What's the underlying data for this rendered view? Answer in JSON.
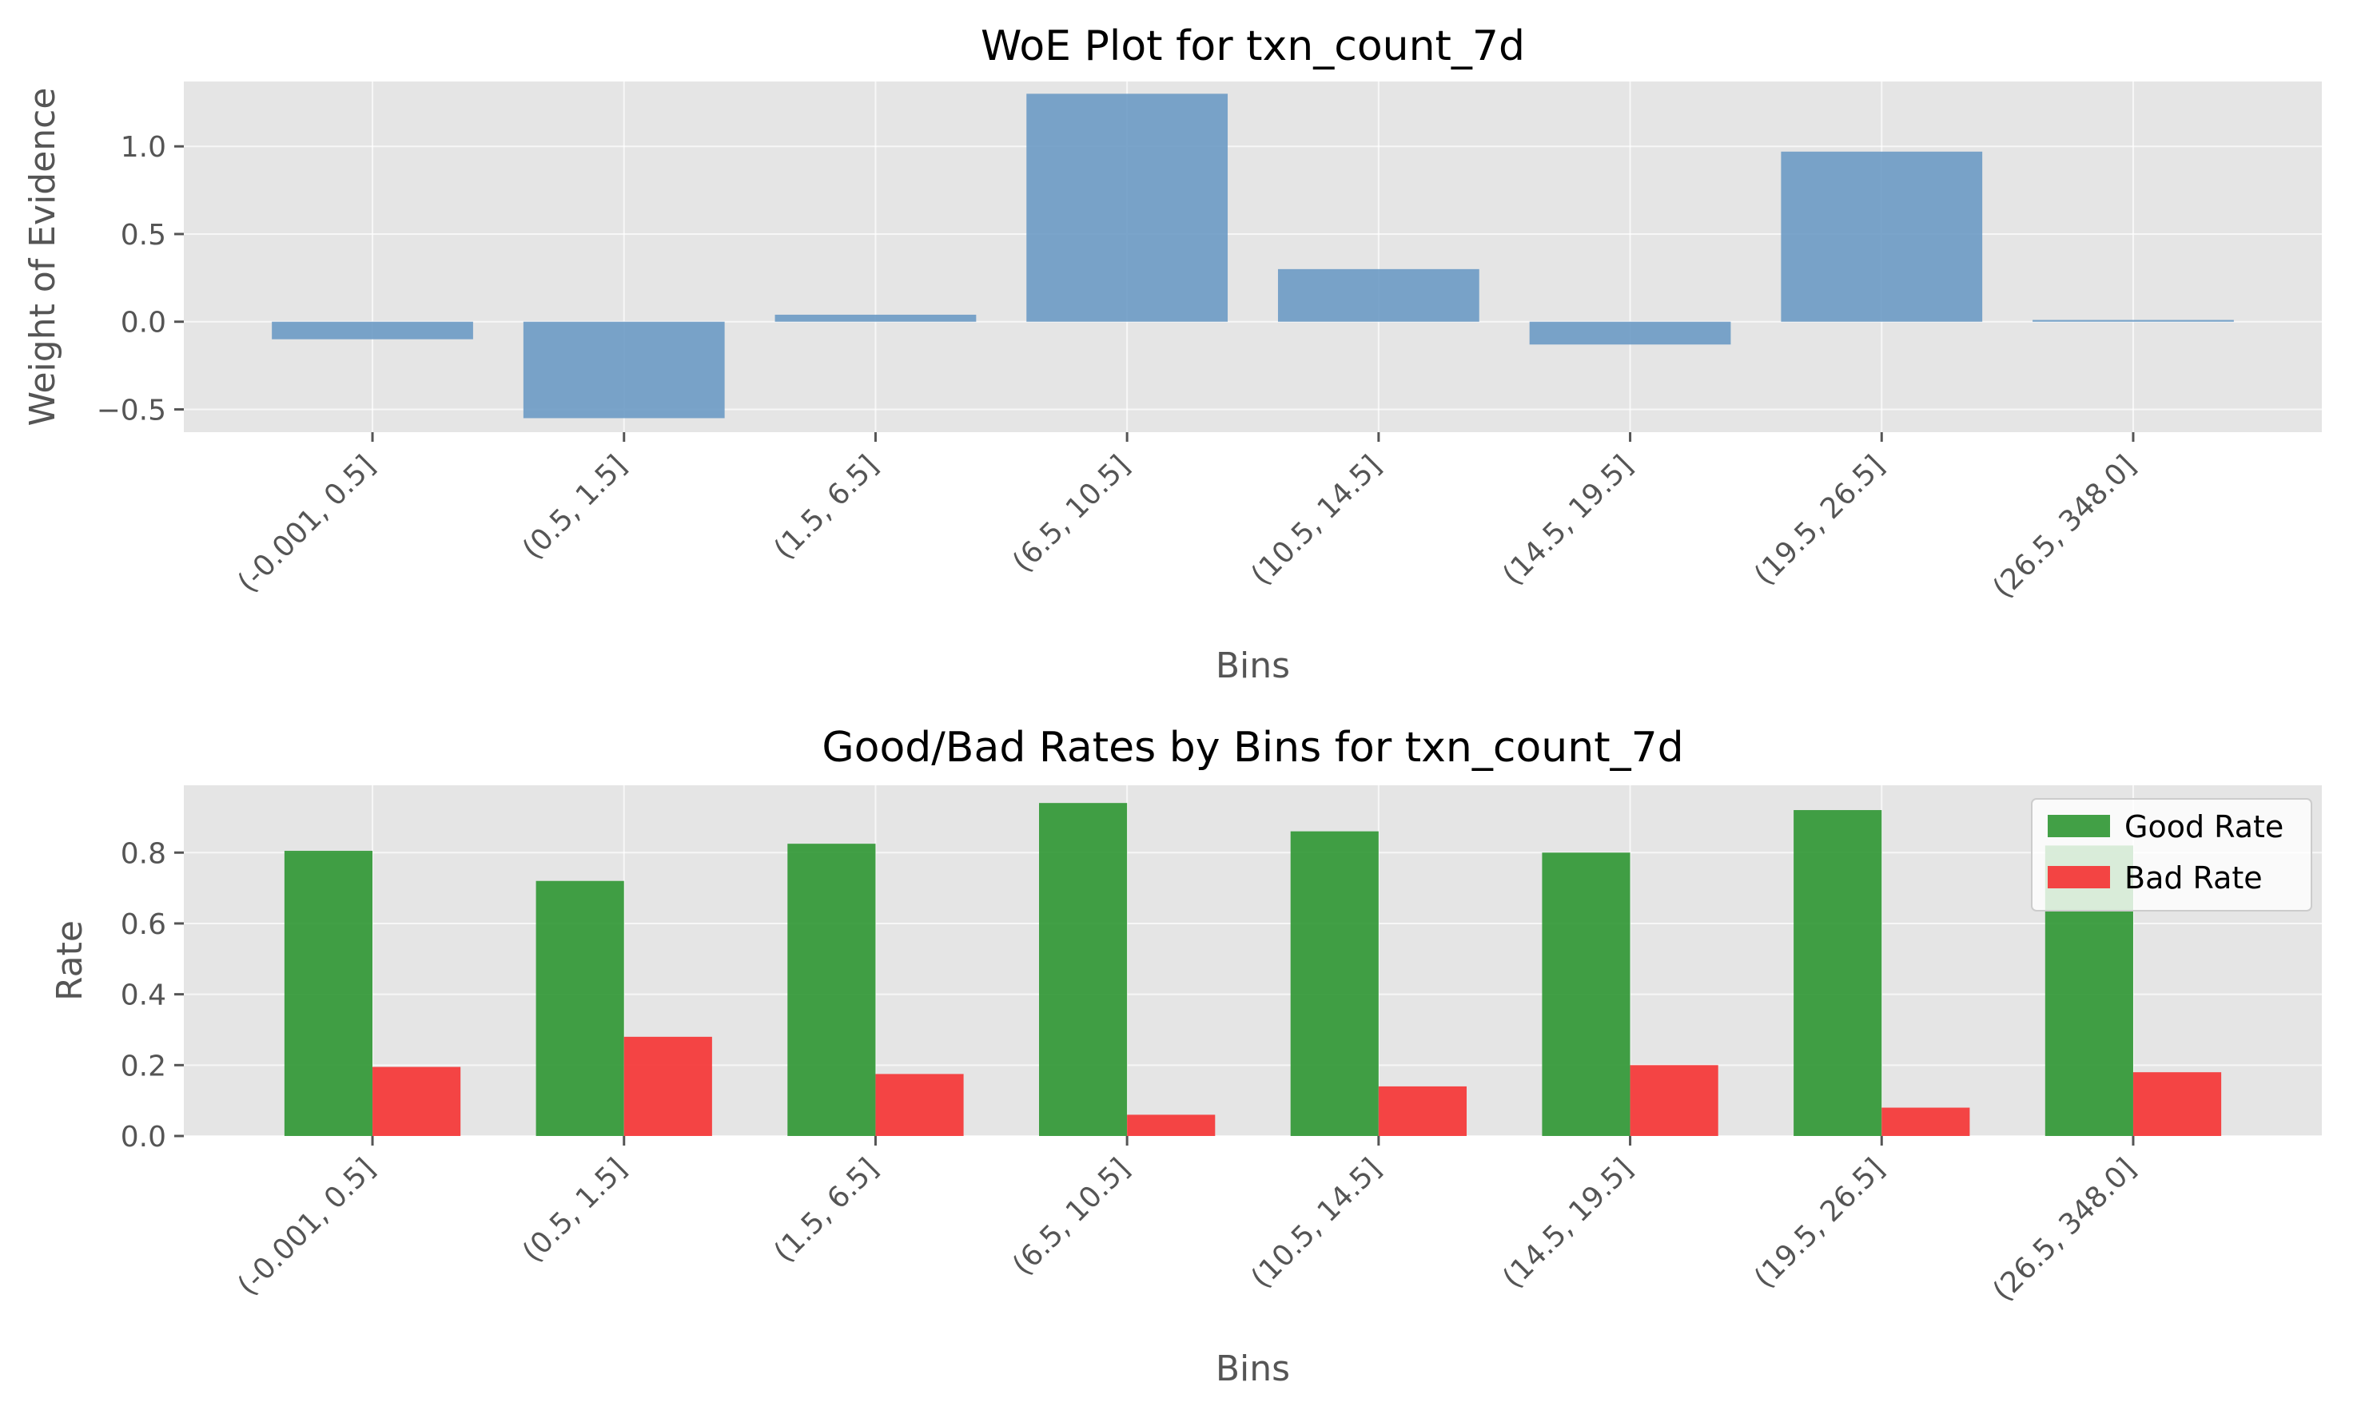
{
  "chart_data": [
    {
      "type": "bar",
      "title": "WoE Plot for txn_count_7d",
      "xlabel": "Bins",
      "ylabel": "Weight of Evidence",
      "categories": [
        "(-0.001, 0.5]",
        "(0.5, 1.5]",
        "(1.5, 6.5]",
        "(6.5, 10.5]",
        "(10.5, 14.5]",
        "(14.5, 19.5]",
        "(19.5, 26.5]",
        "(26.5, 348.0]"
      ],
      "series": [
        {
          "values": [
            -0.1,
            -0.55,
            0.04,
            1.3,
            0.3,
            -0.13,
            0.97,
            0.01
          ],
          "color": "#6b9ac4"
        }
      ],
      "ylim": [
        -0.63,
        1.37
      ],
      "yticks": [
        -0.5,
        0.0,
        0.5,
        1.0
      ],
      "ytick_labels": [
        "−0.5",
        "0.0",
        "0.5",
        "1.0"
      ],
      "grid": true
    },
    {
      "type": "bar",
      "title": "Good/Bad Rates by Bins for txn_count_7d",
      "xlabel": "Bins",
      "ylabel": "Rate",
      "categories": [
        "(-0.001, 0.5]",
        "(0.5, 1.5]",
        "(1.5, 6.5]",
        "(6.5, 10.5]",
        "(10.5, 14.5]",
        "(14.5, 19.5]",
        "(19.5, 26.5]",
        "(26.5, 348.0]"
      ],
      "series": [
        {
          "name": "Good Rate",
          "values": [
            0.805,
            0.72,
            0.825,
            0.94,
            0.86,
            0.8,
            0.92,
            0.82
          ],
          "color": "#2e9632"
        },
        {
          "name": "Bad Rate",
          "values": [
            0.195,
            0.28,
            0.175,
            0.06,
            0.14,
            0.2,
            0.08,
            0.18
          ],
          "color": "#f53232"
        }
      ],
      "ylim": [
        0,
        0.99
      ],
      "yticks": [
        0.0,
        0.2,
        0.4,
        0.6,
        0.8
      ],
      "ytick_labels": [
        "0.0",
        "0.2",
        "0.4",
        "0.6",
        "0.8"
      ],
      "legend_position": "top-right",
      "grid": true
    }
  ]
}
